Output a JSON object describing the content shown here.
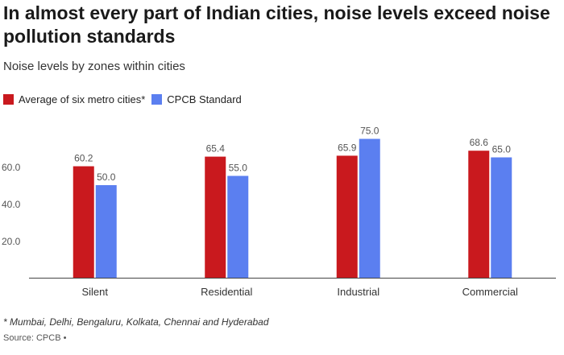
{
  "title": "In almost every part of Indian cities, noise levels exceed noise pollution standards",
  "subtitle": "Noise levels by zones within cities",
  "footnote": "* Mumbai, Delhi, Bengaluru, Kolkata, Chennai and Hyderabad",
  "source": "Source: CPCB •",
  "chart_data": {
    "type": "bar",
    "title": "In almost every part of Indian cities, noise levels exceed noise pollution standards",
    "subtitle": "Noise levels by zones within cities",
    "categories": [
      "Silent",
      "Residential",
      "Industrial",
      "Commercial"
    ],
    "series": [
      {
        "name": "Average of six metro cities*",
        "color": "#c9191e",
        "values": [
          60.2,
          65.4,
          65.9,
          68.6
        ],
        "labels": [
          "60.2",
          "65.4",
          "65.9",
          "68.6"
        ]
      },
      {
        "name": "CPCB Standard",
        "color": "#5b7ff0",
        "values": [
          50.0,
          55.0,
          75.0,
          65.0
        ],
        "labels": [
          "50.0",
          "55.0",
          "75.0",
          "65.0"
        ]
      }
    ],
    "y_ticks": [
      20,
      40,
      60
    ],
    "y_tick_labels": [
      "20.0",
      "40.0",
      "60.0"
    ],
    "ylim": [
      0,
      80
    ],
    "legend_position": "top-left",
    "grid": false
  }
}
